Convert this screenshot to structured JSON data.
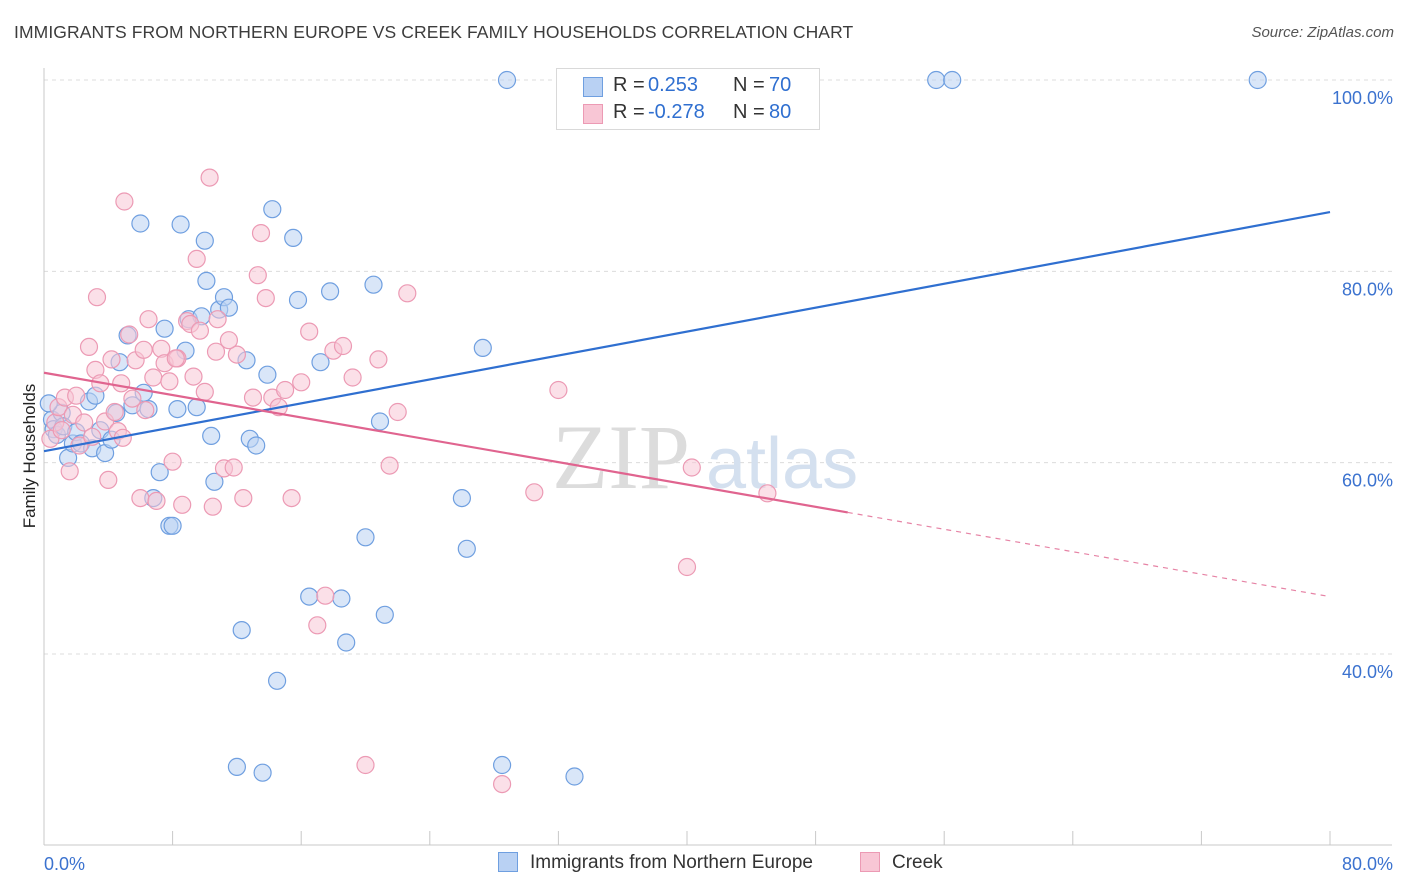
{
  "header": {
    "title": "IMMIGRANTS FROM NORTHERN EUROPE VS CREEK FAMILY HOUSEHOLDS CORRELATION CHART",
    "source": "Source: ZipAtlas.com"
  },
  "watermark": {
    "zip": "ZIP",
    "atlas": "atlas"
  },
  "stats": [
    {
      "r_label": "R =",
      "r_value": "0.253",
      "n_label": "N =",
      "n_value": "70",
      "fill": "#b9d1f3",
      "stroke": "#6f9fe0"
    },
    {
      "r_label": "R =",
      "r_value": "-0.278",
      "n_label": "N =",
      "n_value": "80",
      "fill": "#f8c6d5",
      "stroke": "#ec9ab4"
    }
  ],
  "legend": [
    {
      "label": "Immigrants from Northern Europe",
      "fill": "#b9d1f3",
      "stroke": "#6f9fe0"
    },
    {
      "label": "Creek",
      "fill": "#f8c6d5",
      "stroke": "#ec9ab4"
    }
  ],
  "chart_data": {
    "type": "scatter",
    "title": "IMMIGRANTS FROM NORTHERN EUROPE VS CREEK FAMILY HOUSEHOLDS CORRELATION CHART",
    "xlabel": "",
    "ylabel": "Family Households",
    "xlim": [
      0,
      80
    ],
    "ylim": [
      20,
      102
    ],
    "x_tick_labels": [
      {
        "value": 0,
        "label": "0.0%"
      },
      {
        "value": 80,
        "label": "80.0%"
      }
    ],
    "y_tick_labels": [
      {
        "value": 40,
        "label": "40.0%"
      },
      {
        "value": 60,
        "label": "60.0%"
      },
      {
        "value": 80,
        "label": "80.0%"
      },
      {
        "value": 100,
        "label": "100.0%"
      }
    ],
    "x_minor_ticks": [
      0,
      8,
      16,
      24,
      32,
      40,
      48,
      56,
      64,
      72,
      80
    ],
    "grid": true,
    "legend_position": "bottom-center",
    "series": [
      {
        "name": "Immigrants from Northern Europe",
        "color": "#6f9fe0",
        "fill": "#b9d1f3",
        "trend": {
          "x": [
            0,
            80
          ],
          "y": [
            61.2,
            86.2
          ],
          "style": "solid",
          "color": "#2f6fd0"
        },
        "points": [
          [
            0.5,
            64.5
          ],
          [
            0.6,
            63.5
          ],
          [
            0.8,
            62.9
          ],
          [
            1.1,
            65.2
          ],
          [
            1.2,
            63.8
          ],
          [
            1.5,
            60.5
          ],
          [
            1.8,
            62.0
          ],
          [
            2.0,
            63.2
          ],
          [
            2.3,
            62.0
          ],
          [
            2.8,
            66.4
          ],
          [
            3.0,
            61.5
          ],
          [
            3.2,
            67.0
          ],
          [
            3.5,
            63.4
          ],
          [
            3.8,
            61.0
          ],
          [
            4.2,
            62.4
          ],
          [
            4.5,
            65.2
          ],
          [
            4.7,
            70.5
          ],
          [
            5.2,
            73.3
          ],
          [
            5.5,
            66.0
          ],
          [
            6.0,
            85.0
          ],
          [
            6.2,
            67.3
          ],
          [
            6.5,
            65.6
          ],
          [
            6.8,
            56.3
          ],
          [
            7.2,
            59.0
          ],
          [
            7.5,
            74.0
          ],
          [
            7.8,
            53.4
          ],
          [
            8.0,
            53.4
          ],
          [
            8.3,
            65.6
          ],
          [
            8.5,
            84.9
          ],
          [
            8.8,
            71.7
          ],
          [
            9.0,
            75.0
          ],
          [
            9.5,
            65.8
          ],
          [
            9.8,
            75.3
          ],
          [
            10.0,
            83.2
          ],
          [
            10.1,
            79.0
          ],
          [
            10.4,
            62.8
          ],
          [
            10.6,
            58.0
          ],
          [
            10.9,
            76.0
          ],
          [
            11.2,
            77.3
          ],
          [
            11.5,
            76.2
          ],
          [
            12.0,
            28.2
          ],
          [
            12.3,
            42.5
          ],
          [
            12.6,
            70.7
          ],
          [
            12.8,
            62.5
          ],
          [
            13.2,
            61.8
          ],
          [
            13.6,
            27.6
          ],
          [
            13.9,
            69.2
          ],
          [
            14.2,
            86.5
          ],
          [
            14.5,
            37.2
          ],
          [
            15.5,
            83.5
          ],
          [
            15.8,
            77.0
          ],
          [
            16.5,
            46.0
          ],
          [
            17.2,
            70.5
          ],
          [
            17.8,
            77.9
          ],
          [
            18.5,
            45.8
          ],
          [
            18.8,
            41.2
          ],
          [
            20.0,
            52.2
          ],
          [
            20.5,
            78.6
          ],
          [
            20.9,
            64.3
          ],
          [
            21.2,
            44.1
          ],
          [
            26.0,
            56.3
          ],
          [
            26.3,
            51.0
          ],
          [
            27.3,
            72.0
          ],
          [
            28.5,
            28.4
          ],
          [
            28.8,
            100.0
          ],
          [
            33.0,
            27.2
          ],
          [
            55.5,
            100.0
          ],
          [
            56.5,
            100.0
          ],
          [
            75.5,
            100.0
          ],
          [
            0.3,
            66.2
          ]
        ]
      },
      {
        "name": "Creek",
        "color": "#ec9ab4",
        "fill": "#f8c6d5",
        "trend": {
          "x": [
            0,
            50
          ],
          "y": [
            69.4,
            54.8
          ],
          "style": "solid",
          "color": "#e0648f"
        },
        "trend_extension": {
          "x": [
            50,
            80
          ],
          "y": [
            54.8,
            46.0
          ],
          "style": "dashed",
          "color": "#e0648f"
        },
        "points": [
          [
            0.4,
            62.5
          ],
          [
            0.7,
            64.2
          ],
          [
            0.9,
            65.8
          ],
          [
            1.1,
            63.4
          ],
          [
            1.3,
            66.8
          ],
          [
            1.6,
            59.1
          ],
          [
            1.8,
            65.0
          ],
          [
            2.0,
            67.0
          ],
          [
            2.2,
            61.8
          ],
          [
            2.5,
            64.2
          ],
          [
            2.8,
            72.1
          ],
          [
            3.0,
            62.7
          ],
          [
            3.2,
            69.7
          ],
          [
            3.3,
            77.3
          ],
          [
            3.5,
            68.3
          ],
          [
            3.8,
            64.3
          ],
          [
            4.0,
            58.2
          ],
          [
            4.2,
            70.8
          ],
          [
            4.4,
            65.3
          ],
          [
            4.6,
            63.3
          ],
          [
            4.8,
            68.3
          ],
          [
            5.0,
            87.3
          ],
          [
            5.3,
            73.4
          ],
          [
            5.5,
            66.7
          ],
          [
            5.7,
            70.7
          ],
          [
            6.0,
            56.3
          ],
          [
            6.2,
            71.8
          ],
          [
            6.5,
            75.0
          ],
          [
            6.8,
            68.9
          ],
          [
            7.0,
            56.0
          ],
          [
            7.3,
            71.9
          ],
          [
            7.5,
            70.4
          ],
          [
            7.8,
            68.5
          ],
          [
            8.0,
            60.1
          ],
          [
            8.3,
            70.9
          ],
          [
            8.6,
            55.6
          ],
          [
            8.9,
            74.8
          ],
          [
            9.1,
            74.5
          ],
          [
            9.3,
            69.0
          ],
          [
            9.5,
            81.3
          ],
          [
            9.7,
            73.8
          ],
          [
            10.0,
            67.4
          ],
          [
            10.3,
            89.8
          ],
          [
            10.5,
            55.4
          ],
          [
            10.8,
            75.0
          ],
          [
            11.2,
            59.4
          ],
          [
            11.8,
            59.5
          ],
          [
            12.0,
            71.3
          ],
          [
            12.4,
            56.3
          ],
          [
            13.0,
            66.8
          ],
          [
            13.3,
            79.6
          ],
          [
            13.5,
            84.0
          ],
          [
            13.8,
            77.2
          ],
          [
            14.2,
            66.8
          ],
          [
            14.6,
            65.8
          ],
          [
            15.0,
            67.6
          ],
          [
            15.4,
            56.3
          ],
          [
            16.0,
            68.4
          ],
          [
            16.5,
            73.7
          ],
          [
            17.0,
            43.0
          ],
          [
            17.5,
            46.1
          ],
          [
            18.0,
            71.7
          ],
          [
            18.6,
            72.2
          ],
          [
            19.2,
            68.9
          ],
          [
            20.0,
            28.4
          ],
          [
            20.8,
            70.8
          ],
          [
            21.5,
            59.7
          ],
          [
            22.0,
            65.3
          ],
          [
            22.6,
            77.7
          ],
          [
            28.5,
            26.4
          ],
          [
            30.5,
            56.9
          ],
          [
            32.0,
            67.6
          ],
          [
            40.0,
            49.1
          ],
          [
            40.3,
            59.5
          ],
          [
            45.0,
            56.8
          ],
          [
            4.9,
            62.6
          ],
          [
            6.3,
            65.5
          ],
          [
            8.2,
            70.9
          ],
          [
            10.7,
            71.6
          ],
          [
            11.5,
            72.8
          ]
        ]
      }
    ]
  }
}
